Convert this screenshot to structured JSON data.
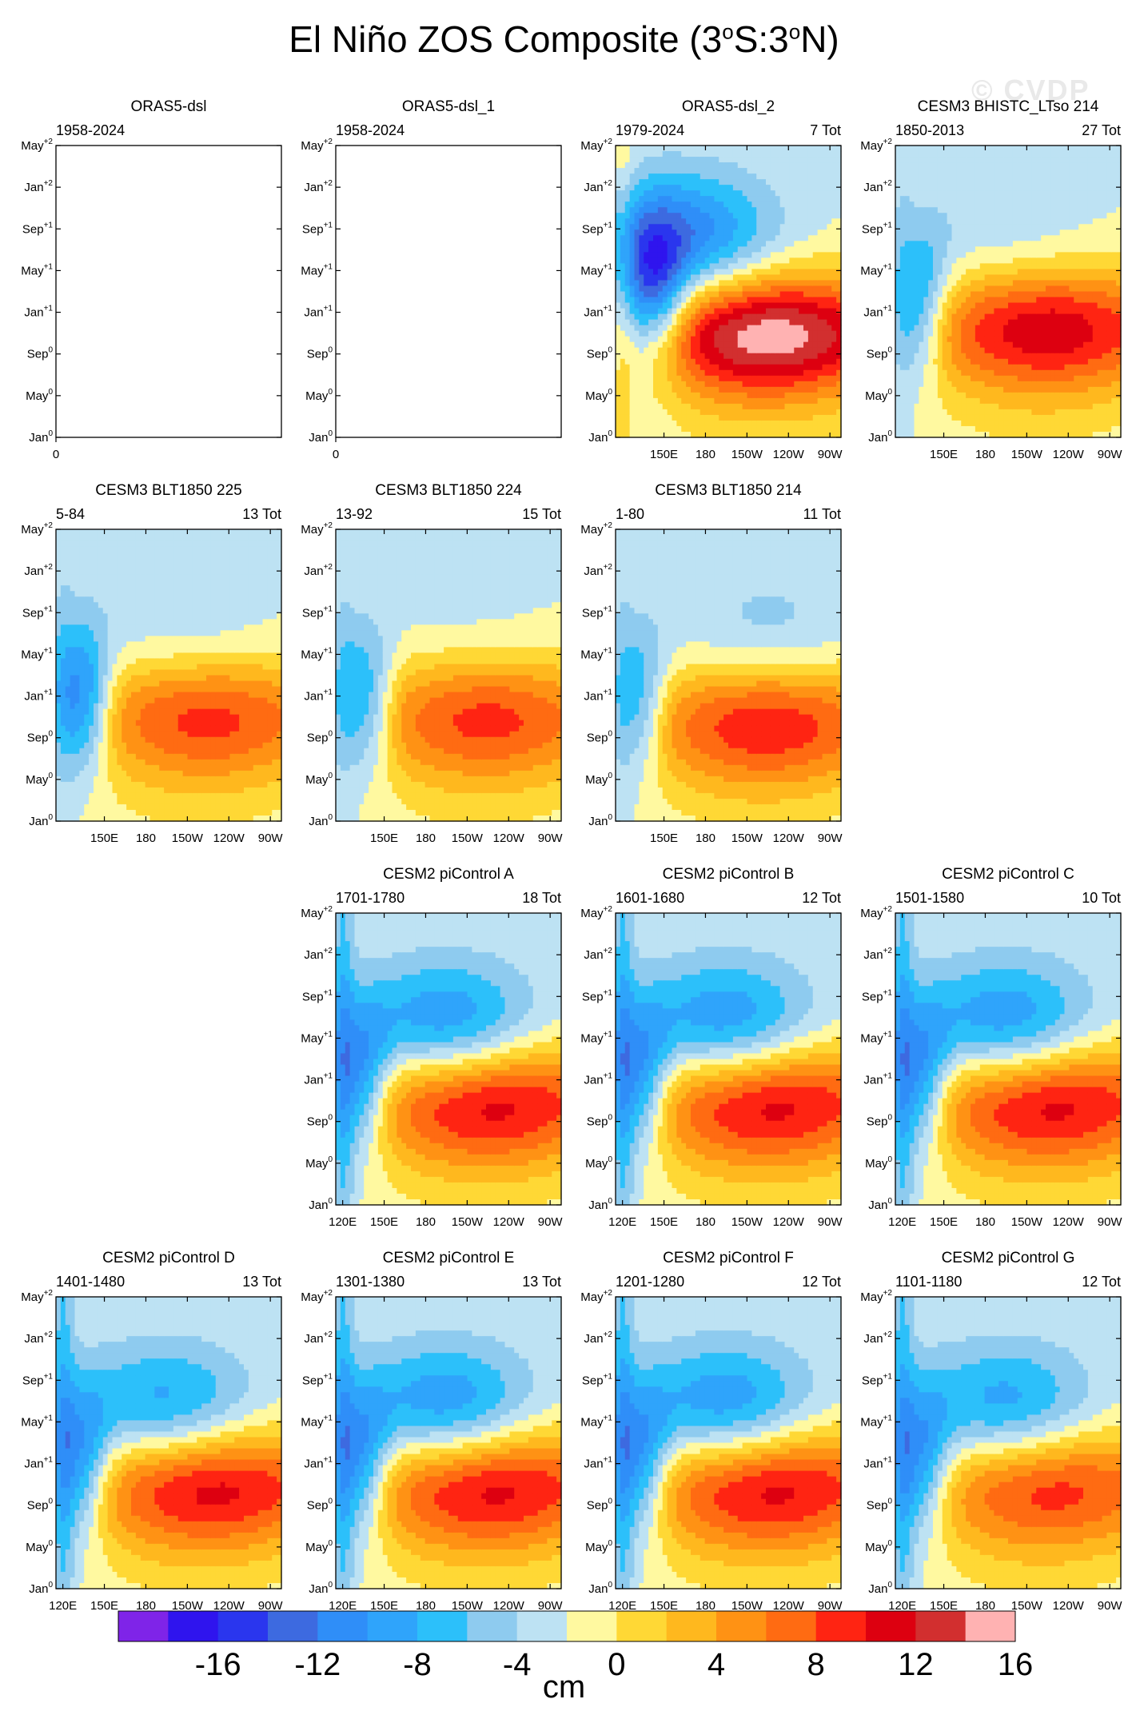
{
  "title": {
    "main": "El Niño ZOS Composite (3",
    "deg1": "o",
    "mid": "S:3",
    "deg2": "o",
    "end": "N)"
  },
  "watermark": "© CVDP",
  "colors": {
    "levels": [
      -18,
      -16,
      -14,
      -12,
      -10,
      -8,
      -6,
      -4,
      -2,
      0,
      2,
      4,
      6,
      8,
      10,
      12,
      14,
      16,
      18
    ],
    "fills": [
      "#7f24e8",
      "#2f14ee",
      "#2a36ee",
      "#3d6ae0",
      "#2f8ef8",
      "#2fa4fb",
      "#2cc0fa",
      "#8ecbef",
      "#bde2f3",
      "#fff9a0",
      "#ffd835",
      "#ffb81e",
      "#ff9214",
      "#ff6b12",
      "#ff2412",
      "#dd0010",
      "#d22f2f",
      "#ffb2b2"
    ]
  },
  "colorbar": {
    "tick_labels": [
      "-16",
      "-12",
      "-8",
      "-4",
      "0",
      "4",
      "8",
      "12",
      "16"
    ],
    "units": "cm"
  },
  "axis": {
    "y_labels": [
      {
        "base": "May",
        "sup": "+2"
      },
      {
        "base": "Jan",
        "sup": "+2"
      },
      {
        "base": "Sep",
        "sup": "+1"
      },
      {
        "base": "May",
        "sup": "+1"
      },
      {
        "base": "Jan",
        "sup": "+1"
      },
      {
        "base": "Sep",
        "sup": "0"
      },
      {
        "base": "May",
        "sup": "0"
      },
      {
        "base": "Jan",
        "sup": "0"
      }
    ],
    "x_labels_full": [
      "120E",
      "150E",
      "180",
      "150W",
      "120W",
      "90W"
    ],
    "x_labels_short": [
      "150E",
      "180",
      "150W",
      "120W",
      "90W"
    ],
    "x_label_empty": "0"
  },
  "chart_data": [
    {
      "type": "heatmap",
      "title": "ORAS5-dsl",
      "left_label": "1958-2024",
      "right_label": "",
      "empty": true,
      "x_axis": "empty"
    },
    {
      "type": "heatmap",
      "title": "ORAS5-dsl_1",
      "left_label": "1958-2024",
      "right_label": "",
      "empty": true,
      "x_axis": "empty"
    },
    {
      "type": "heatmap",
      "title": "ORAS5-dsl_2",
      "left_label": "1979-2024",
      "right_label": "7 Tot",
      "x_axis": "short",
      "w_amp": -13,
      "w_time": 13,
      "w_lon": 143,
      "e_amp": 17,
      "e_start": 148,
      "e_end": 260,
      "e_time": 10,
      "late_amp": -10,
      "late_lon": 165,
      "late_time": 19,
      "edge": 2
    },
    {
      "type": "heatmap",
      "title": "CESM3 BHISTC_LTso 214",
      "left_label": "1850-2013",
      "right_label": "27 Tot",
      "x_axis": "short",
      "w_amp": -7,
      "w_time": 13,
      "w_lon": 135,
      "e_amp": 13,
      "e_start": 158,
      "e_end": 262,
      "e_time": 10.5,
      "late_amp": -2,
      "late_lon": 190,
      "late_time": 19,
      "edge": -1
    },
    {
      "type": "heatmap",
      "title": "CESM3 BLT1850 225",
      "left_label": "5-84",
      "right_label": "13 Tot",
      "x_axis": "short",
      "w_amp": -9,
      "w_time": 12,
      "w_lon": 133,
      "e_amp": 10,
      "e_start": 165,
      "e_end": 262,
      "e_time": 10,
      "late_amp": -2,
      "late_lon": 205,
      "late_time": 19,
      "edge": -1
    },
    {
      "type": "heatmap",
      "title": "CESM3 BLT1850 224",
      "left_label": "13-92",
      "right_label": "15 Tot",
      "x_axis": "short",
      "w_amp": -6,
      "w_time": 12,
      "w_lon": 133,
      "e_amp": 10,
      "e_start": 170,
      "e_end": 262,
      "e_time": 10,
      "late_amp": -1,
      "late_lon": 205,
      "late_time": 19,
      "edge": -1
    },
    {
      "type": "heatmap",
      "title": "CESM3 BLT1850 214",
      "left_label": "1-80",
      "right_label": "11 Tot",
      "x_axis": "short",
      "w_amp": -6,
      "w_time": 12,
      "w_lon": 133,
      "e_amp": 11,
      "e_start": 160,
      "e_end": 262,
      "e_time": 9.5,
      "late_amp": -3,
      "late_lon": 225,
      "late_time": 18,
      "edge": -1
    },
    {
      "type": "heatmap",
      "title": "CESM2 piControl A",
      "left_label": "1701-1780",
      "right_label": "18 Tot",
      "x_axis": "full",
      "w_amp": -8,
      "w_time": 12,
      "w_lon": 135,
      "e_amp": 13,
      "e_start": 158,
      "e_end": 262,
      "e_time": 10,
      "late_amp": -9,
      "late_lon": 195,
      "late_time": 17,
      "edge": -4
    },
    {
      "type": "heatmap",
      "title": "CESM2 piControl B",
      "left_label": "1601-1680",
      "right_label": "12 Tot",
      "x_axis": "full",
      "w_amp": -8,
      "w_time": 12,
      "w_lon": 135,
      "e_amp": 13,
      "e_start": 158,
      "e_end": 262,
      "e_time": 10,
      "late_amp": -9,
      "late_lon": 195,
      "late_time": 17,
      "edge": -4
    },
    {
      "type": "heatmap",
      "title": "CESM2 piControl C",
      "left_label": "1501-1580",
      "right_label": "10 Tot",
      "x_axis": "full",
      "w_amp": -8,
      "w_time": 12,
      "w_lon": 135,
      "e_amp": 13,
      "e_start": 158,
      "e_end": 262,
      "e_time": 10,
      "late_amp": -9,
      "late_lon": 195,
      "late_time": 17,
      "edge": -4
    },
    {
      "type": "heatmap",
      "title": "CESM2 piControl D",
      "left_label": "1401-1480",
      "right_label": "13 Tot",
      "x_axis": "full",
      "w_amp": -8,
      "w_time": 12,
      "w_lon": 135,
      "e_amp": 13,
      "e_start": 158,
      "e_end": 262,
      "e_time": 10,
      "late_amp": -8,
      "late_lon": 195,
      "late_time": 17,
      "edge": -4
    },
    {
      "type": "heatmap",
      "title": "CESM2 piControl E",
      "left_label": "1301-1380",
      "right_label": "13 Tot",
      "x_axis": "full",
      "w_amp": -8,
      "w_time": 12,
      "w_lon": 135,
      "e_amp": 13,
      "e_start": 158,
      "e_end": 262,
      "e_time": 10,
      "late_amp": -9,
      "late_lon": 195,
      "late_time": 17,
      "edge": -4
    },
    {
      "type": "heatmap",
      "title": "CESM2 piControl F",
      "left_label": "1201-1280",
      "right_label": "12 Tot",
      "x_axis": "full",
      "w_amp": -8,
      "w_time": 12,
      "w_lon": 135,
      "e_amp": 13,
      "e_start": 158,
      "e_end": 262,
      "e_time": 10,
      "late_amp": -9,
      "late_lon": 195,
      "late_time": 17,
      "edge": -4
    },
    {
      "type": "heatmap",
      "title": "CESM2 piControl G",
      "left_label": "1101-1180",
      "right_label": "12 Tot",
      "x_axis": "full",
      "w_amp": -8,
      "w_time": 12,
      "w_lon": 135,
      "e_amp": 11,
      "e_start": 158,
      "e_end": 262,
      "e_time": 10,
      "late_amp": -8,
      "late_lon": 195,
      "late_time": 17,
      "edge": -4
    }
  ]
}
